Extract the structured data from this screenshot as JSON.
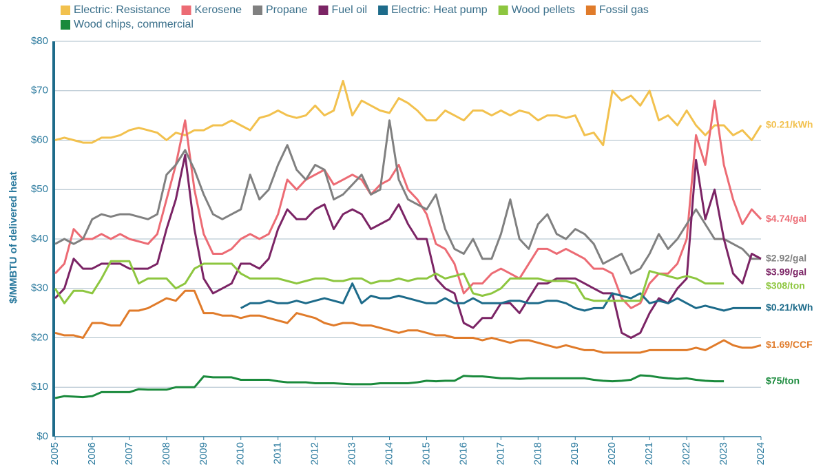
{
  "chart_data": {
    "type": "line",
    "y_label": "$/MMBTU of delivered heat",
    "x": [
      2005,
      2005.25,
      2005.5,
      2005.75,
      2006,
      2006.25,
      2006.5,
      2006.75,
      2007,
      2007.25,
      2007.5,
      2007.75,
      2008,
      2008.25,
      2008.5,
      2008.75,
      2009,
      2009.25,
      2009.5,
      2009.75,
      2010,
      2010.25,
      2010.5,
      2010.75,
      2011,
      2011.25,
      2011.5,
      2011.75,
      2012,
      2012.25,
      2012.5,
      2012.75,
      2013,
      2013.25,
      2013.5,
      2013.75,
      2014,
      2014.25,
      2014.5,
      2014.75,
      2015,
      2015.25,
      2015.5,
      2015.75,
      2016,
      2016.25,
      2016.5,
      2016.75,
      2017,
      2017.25,
      2017.5,
      2017.75,
      2018,
      2018.25,
      2018.5,
      2018.75,
      2019,
      2019.25,
      2019.5,
      2019.75,
      2020,
      2020.25,
      2020.5,
      2020.75,
      2021,
      2021.25,
      2021.5,
      2021.75,
      2022,
      2022.25,
      2022.5,
      2022.75,
      2023,
      2023.25,
      2023.5,
      2023.75,
      2024
    ],
    "series": [
      {
        "name": "Electric: Resistance",
        "color": "#f2c14e",
        "end_label": "$0.21/kWh",
        "values": [
          60,
          60.5,
          60,
          59.5,
          59.5,
          60.5,
          60.5,
          61,
          62,
          62.5,
          62,
          61.5,
          60,
          61.5,
          61,
          62,
          62,
          63,
          63,
          64,
          63,
          62,
          64.5,
          65,
          66,
          65,
          64.5,
          65,
          67,
          65,
          66,
          72,
          65,
          68,
          67,
          66,
          65.5,
          68.5,
          67.5,
          66,
          64,
          64,
          66,
          65,
          64,
          66,
          66,
          65,
          66,
          65,
          66,
          65.5,
          64,
          65,
          65,
          64.5,
          65,
          61,
          61.5,
          59,
          70,
          68,
          69,
          67,
          70,
          64,
          65,
          63,
          66,
          63,
          61,
          63,
          63,
          61,
          62,
          60,
          63
        ]
      },
      {
        "name": "Kerosene",
        "color": "#ec6b74",
        "end_label": "$4.74/gal",
        "values": [
          33,
          35,
          42,
          40,
          40,
          41,
          40,
          41,
          40,
          39.5,
          39,
          41,
          48,
          55,
          64,
          50,
          41,
          37,
          37,
          38,
          40,
          41,
          40,
          41,
          45,
          52,
          50,
          52,
          53,
          54,
          51,
          52,
          53,
          52,
          49,
          51,
          52,
          55,
          50,
          48,
          45,
          39,
          38,
          35,
          29,
          31,
          31,
          33,
          34,
          33,
          32,
          35,
          38,
          38,
          37,
          38,
          37,
          36,
          34,
          34,
          33,
          28,
          26,
          27,
          31,
          33,
          33,
          35,
          40,
          61,
          55,
          68,
          55,
          48,
          43,
          46,
          44
        ]
      },
      {
        "name": "Propane",
        "color": "#808080",
        "end_label": "$2.92/gal",
        "values": [
          39,
          40,
          39,
          40,
          44,
          45,
          44.5,
          45,
          45,
          44.5,
          44,
          45,
          53,
          55,
          58,
          54,
          49,
          45,
          44,
          45,
          46,
          53,
          48,
          50,
          55,
          59,
          54,
          52,
          55,
          54,
          48,
          49,
          51,
          53,
          49,
          50,
          64,
          52,
          48,
          47,
          46,
          49,
          42,
          38,
          37,
          40,
          36,
          36,
          41,
          48,
          40,
          38,
          43,
          45,
          41,
          40,
          42,
          41,
          39,
          35,
          36,
          37,
          33,
          34,
          37,
          41,
          38,
          40,
          43,
          46,
          43,
          40,
          40,
          39,
          38,
          36,
          36
        ]
      },
      {
        "name": "Fuel oil",
        "color": "#7b2465",
        "end_label": "$3.99/gal",
        "values": [
          28,
          30,
          36,
          34,
          34,
          35,
          35,
          35,
          34,
          34,
          34,
          35,
          42,
          48,
          57,
          42,
          32,
          29,
          30,
          31,
          35,
          35,
          34,
          36,
          42,
          46,
          44,
          44,
          46,
          47,
          42,
          45,
          46,
          45,
          42,
          43,
          44,
          47,
          43,
          40,
          40,
          32,
          30,
          29,
          23,
          22,
          24,
          24,
          27,
          27,
          25,
          28,
          31,
          31,
          32,
          32,
          32,
          31,
          30,
          29,
          29,
          21,
          20,
          21,
          25,
          28,
          27,
          30,
          32,
          56,
          44,
          50,
          40,
          33,
          31,
          37,
          36
        ]
      },
      {
        "name": "Electric: Heat pump",
        "color": "#1d6b8a",
        "end_label": "$0.21/kWh",
        "values": [
          null,
          null,
          null,
          null,
          null,
          null,
          null,
          null,
          null,
          null,
          null,
          null,
          null,
          null,
          null,
          null,
          null,
          null,
          null,
          null,
          26,
          27,
          27,
          27.5,
          27,
          27,
          27.5,
          27,
          27.5,
          28,
          27.5,
          27,
          31,
          27,
          28.5,
          28,
          28,
          28.5,
          28,
          27.5,
          27,
          27,
          28,
          27,
          27,
          28,
          27,
          27,
          27,
          27.5,
          27.5,
          27,
          27,
          27.5,
          27.5,
          27,
          26,
          25.5,
          26,
          26,
          29,
          28.5,
          28,
          29,
          27,
          27.5,
          27,
          28,
          27,
          26,
          26.5,
          26,
          25.5,
          26,
          26,
          26,
          26
        ]
      },
      {
        "name": "Wood pellets",
        "color": "#8dc63f",
        "end_label": "$308/ton",
        "values": [
          30,
          27,
          29.5,
          29.5,
          29,
          32,
          35.5,
          35.5,
          35.5,
          31,
          32,
          32,
          32,
          30,
          31,
          34,
          35,
          35,
          35,
          35,
          33,
          32,
          32,
          32,
          32,
          31.5,
          31,
          31.5,
          32,
          32,
          31.5,
          31.5,
          32,
          32,
          31,
          31.5,
          31.5,
          32,
          31.5,
          32,
          32,
          33,
          32,
          32.5,
          33,
          29,
          28.5,
          29,
          30,
          32,
          32,
          32,
          32,
          31.5,
          31.5,
          31.5,
          31,
          28,
          27.5,
          27.5,
          27.5,
          27.5,
          27.5,
          27.5,
          33.5,
          33,
          32.5,
          32,
          32.5,
          32,
          31,
          31,
          31,
          null,
          null,
          null,
          null
        ]
      },
      {
        "name": "Fossil gas",
        "color": "#e07b2a",
        "end_label": "$1.69/CCF",
        "values": [
          21,
          20.5,
          20.5,
          20,
          23,
          23,
          22.5,
          22.5,
          25.5,
          25.5,
          26,
          27,
          28,
          27.5,
          29.5,
          29.5,
          25,
          25,
          24.5,
          24.5,
          24,
          24.5,
          24.5,
          24,
          23.5,
          23,
          25,
          24.5,
          24,
          23,
          22.5,
          23,
          23,
          22.5,
          22.5,
          22,
          21.5,
          21,
          21.5,
          21.5,
          21,
          20.5,
          20.5,
          20,
          20,
          20,
          19.5,
          20,
          19.5,
          19,
          19.5,
          19.5,
          19,
          18.5,
          18,
          18.5,
          18,
          17.5,
          17.5,
          17,
          17,
          17,
          17,
          17,
          17.5,
          17.5,
          17.5,
          17.5,
          17.5,
          18,
          17.5,
          18.5,
          19.5,
          18.5,
          18,
          18,
          18.5
        ]
      },
      {
        "name": "Wood chips, commercial",
        "color": "#1a8a3c",
        "end_label": "$75/ton",
        "values": [
          7.8,
          8.2,
          8.1,
          8,
          8.2,
          9,
          9,
          9,
          9,
          9.6,
          9.5,
          9.5,
          9.5,
          10,
          10,
          10,
          12.2,
          12,
          12,
          12,
          11.5,
          11.5,
          11.5,
          11.5,
          11.2,
          11,
          11,
          11,
          10.8,
          10.8,
          10.8,
          10.7,
          10.6,
          10.6,
          10.6,
          10.8,
          10.8,
          10.8,
          10.8,
          11,
          11.3,
          11.2,
          11.3,
          11.3,
          12.3,
          12.2,
          12.2,
          12,
          11.8,
          11.8,
          11.7,
          11.8,
          11.8,
          11.8,
          11.8,
          11.8,
          11.8,
          11.8,
          11.5,
          11.3,
          11.2,
          11.3,
          11.5,
          12.4,
          12.3,
          12,
          11.8,
          11.7,
          11.8,
          11.5,
          11.3,
          11.2,
          11.2,
          null,
          null,
          null,
          null
        ]
      }
    ],
    "xlim": [
      2005,
      2024
    ],
    "xticks": [
      2005,
      2006,
      2007,
      2008,
      2009,
      2010,
      2011,
      2012,
      2013,
      2014,
      2015,
      2016,
      2017,
      2018,
      2019,
      2020,
      2021,
      2022,
      2023,
      2024
    ],
    "ylim": [
      0,
      80
    ],
    "yticks": [
      {
        "value": 0,
        "label": "$0"
      },
      {
        "value": 10,
        "label": "$10"
      },
      {
        "value": 20,
        "label": "$20"
      },
      {
        "value": 30,
        "label": "$30"
      },
      {
        "value": 40,
        "label": "$40"
      },
      {
        "value": 50,
        "label": "$50"
      },
      {
        "value": 60,
        "label": "$60"
      },
      {
        "value": 70,
        "label": "$70"
      },
      {
        "value": 80,
        "label": "$80"
      }
    ],
    "grid": true
  }
}
